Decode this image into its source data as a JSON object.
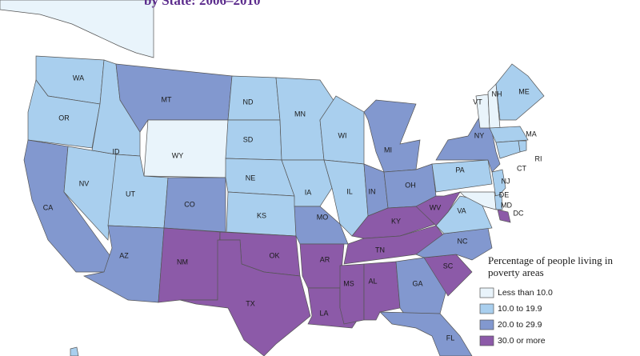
{
  "title": "by State: 2006–2010",
  "legend": {
    "title": "Percentage of people living in poverty areas",
    "classes": [
      {
        "label": "Less than 10.0",
        "color": "#e9f4fb"
      },
      {
        "label": "10.0 to 19.9",
        "color": "#a9cfee"
      },
      {
        "label": "20.0 to 29.9",
        "color": "#8298cf"
      },
      {
        "label": "30.0 or more",
        "color": "#8c5aa8"
      }
    ]
  },
  "states": [
    {
      "label": "WA",
      "class": 1
    },
    {
      "label": "OR",
      "class": 1
    },
    {
      "label": "CA",
      "class": 2
    },
    {
      "label": "NV",
      "class": 1
    },
    {
      "label": "ID",
      "class": 1
    },
    {
      "label": "MT",
      "class": 2
    },
    {
      "label": "WY",
      "class": 0
    },
    {
      "label": "UT",
      "class": 1
    },
    {
      "label": "AZ",
      "class": 2
    },
    {
      "label": "CO",
      "class": 2
    },
    {
      "label": "NM",
      "class": 3
    },
    {
      "label": "ND",
      "class": 1
    },
    {
      "label": "SD",
      "class": 1
    },
    {
      "label": "NE",
      "class": 1
    },
    {
      "label": "KS",
      "class": 1
    },
    {
      "label": "OK",
      "class": 3
    },
    {
      "label": "TX",
      "class": 3
    },
    {
      "label": "MN",
      "class": 1
    },
    {
      "label": "IA",
      "class": 1
    },
    {
      "label": "MO",
      "class": 2
    },
    {
      "label": "AR",
      "class": 3
    },
    {
      "label": "LA",
      "class": 3
    },
    {
      "label": "WI",
      "class": 1
    },
    {
      "label": "IL",
      "class": 1
    },
    {
      "label": "MI",
      "class": 2
    },
    {
      "label": "IN",
      "class": 2
    },
    {
      "label": "OH",
      "class": 2
    },
    {
      "label": "KY",
      "class": 3
    },
    {
      "label": "TN",
      "class": 3
    },
    {
      "label": "MS",
      "class": 3
    },
    {
      "label": "AL",
      "class": 3
    },
    {
      "label": "GA",
      "class": 2
    },
    {
      "label": "FL",
      "class": 2
    },
    {
      "label": "SC",
      "class": 3
    },
    {
      "label": "NC",
      "class": 2
    },
    {
      "label": "VA",
      "class": 1
    },
    {
      "label": "WV",
      "class": 3
    },
    {
      "label": "PA",
      "class": 1
    },
    {
      "label": "NY",
      "class": 2
    },
    {
      "label": "VT",
      "class": 0
    },
    {
      "label": "NH",
      "class": 0
    },
    {
      "label": "ME",
      "class": 1
    },
    {
      "label": "MA",
      "class": 1
    },
    {
      "label": "RI",
      "class": 1
    },
    {
      "label": "CT",
      "class": 1
    },
    {
      "label": "NJ",
      "class": 1
    },
    {
      "label": "DE",
      "class": 1
    },
    {
      "label": "MD",
      "class": 0
    },
    {
      "label": "DC",
      "class": 3
    }
  ]
}
